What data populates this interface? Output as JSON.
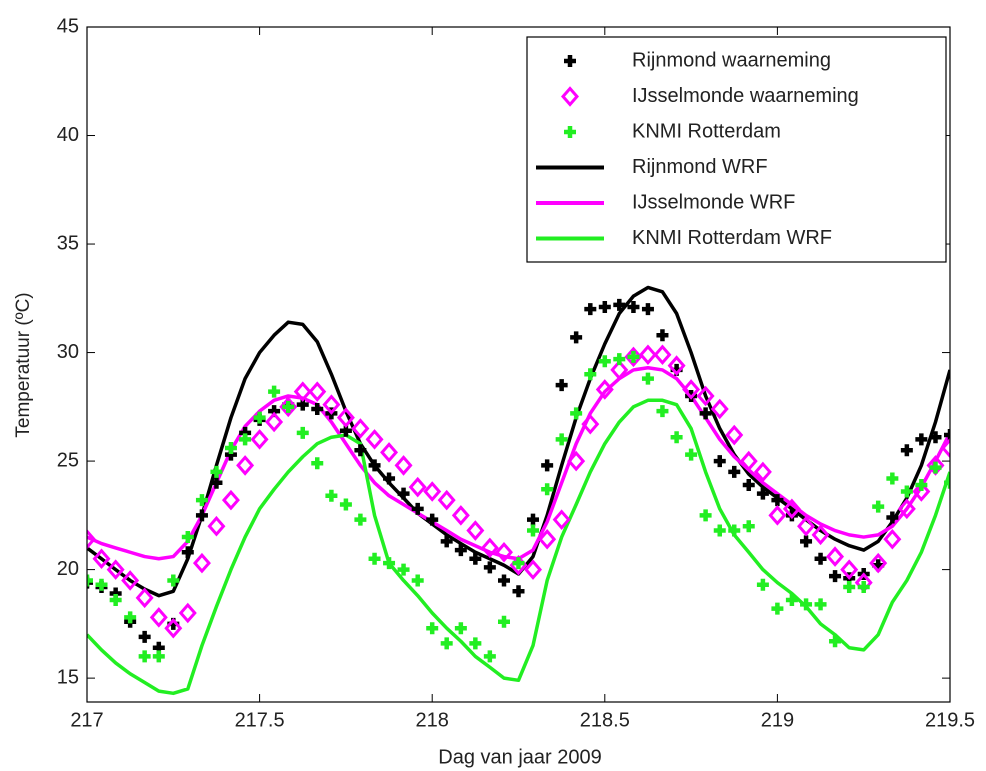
{
  "chart_data": {
    "type": "line",
    "xlabel": "Dag van jaar 2009",
    "ylabel": "Temperatuur (ºC)",
    "xlim": [
      217,
      219.5
    ],
    "ylim": [
      13.9,
      45
    ],
    "xticks": [
      217,
      217.5,
      218,
      218.5,
      219,
      219.5
    ],
    "yticks": [
      15,
      20,
      25,
      30,
      35,
      40,
      45
    ],
    "legend": "top-right",
    "x": [
      217,
      217.042,
      217.083,
      217.125,
      217.167,
      217.208,
      217.25,
      217.292,
      217.333,
      217.375,
      217.417,
      217.458,
      217.5,
      217.542,
      217.583,
      217.625,
      217.667,
      217.708,
      217.75,
      217.792,
      217.833,
      217.875,
      217.917,
      217.958,
      218,
      218.042,
      218.083,
      218.125,
      218.167,
      218.208,
      218.25,
      218.292,
      218.333,
      218.375,
      218.417,
      218.458,
      218.5,
      218.542,
      218.583,
      218.625,
      218.667,
      218.708,
      218.75,
      218.792,
      218.833,
      218.875,
      218.917,
      218.958,
      219,
      219.042,
      219.083,
      219.125,
      219.167,
      219.208,
      219.25,
      219.292,
      219.333,
      219.375,
      219.417,
      219.458,
      219.5
    ],
    "series": [
      {
        "name": "Rijnmond waarneming",
        "color": "#000000",
        "style": "plus",
        "values": [
          19.4,
          19.2,
          18.9,
          17.6,
          16.9,
          16.4,
          17.5,
          20.8,
          22.5,
          24.0,
          25.3,
          26.3,
          26.9,
          27.3,
          27.6,
          27.6,
          27.4,
          27.2,
          26.4,
          25.5,
          24.8,
          24.2,
          23.5,
          22.8,
          22.3,
          21.3,
          20.9,
          20.5,
          20.1,
          19.5,
          19.0,
          22.3,
          24.8,
          28.5,
          30.7,
          32.0,
          32.1,
          32.2,
          32.1,
          32.0,
          30.8,
          29.2,
          28.0,
          27.2,
          25.0,
          24.5,
          23.9,
          23.5,
          23.2,
          22.5,
          21.3,
          20.5,
          19.7,
          19.6,
          19.8,
          20.2,
          22.4,
          25.5,
          26.0,
          26.1,
          26.2
        ]
      },
      {
        "name": "IJsselmonde waarneming",
        "color": "#ff00ff",
        "style": "diamond",
        "values": [
          21.4,
          20.5,
          20.0,
          19.5,
          18.7,
          17.8,
          17.3,
          18.0,
          20.3,
          22.0,
          23.2,
          24.8,
          26.0,
          26.8,
          27.5,
          28.2,
          28.2,
          27.6,
          27.0,
          26.5,
          26.0,
          25.4,
          24.8,
          23.8,
          23.6,
          23.2,
          22.5,
          21.8,
          21.0,
          20.8,
          20.2,
          20.0,
          21.4,
          22.3,
          25.0,
          26.7,
          28.3,
          29.2,
          29.8,
          29.9,
          29.9,
          29.4,
          28.3,
          28.0,
          27.4,
          26.2,
          25.0,
          24.5,
          22.5,
          22.8,
          22.0,
          21.6,
          20.6,
          20.0,
          19.4,
          20.3,
          21.4,
          22.8,
          23.6,
          24.8,
          25.6
        ]
      },
      {
        "name": "KNMI Rotterdam",
        "color": "#22ee22",
        "style": "plus",
        "values": [
          19.5,
          19.3,
          18.6,
          17.8,
          16.0,
          16.0,
          19.5,
          21.5,
          23.2,
          24.5,
          25.6,
          26.0,
          27.0,
          28.2,
          27.5,
          26.3,
          24.9,
          23.4,
          23.0,
          22.3,
          20.5,
          20.3,
          20.0,
          19.5,
          17.3,
          16.6,
          17.3,
          16.6,
          16.0,
          17.6,
          20.3,
          21.8,
          23.7,
          26.0,
          27.2,
          29.0,
          29.6,
          29.7,
          29.8,
          28.8,
          27.3,
          26.1,
          25.3,
          22.5,
          21.8,
          21.8,
          22.0,
          19.3,
          18.2,
          18.6,
          18.4,
          18.4,
          16.7,
          19.2,
          19.2,
          22.9,
          24.2,
          23.6,
          23.9,
          24.7,
          24.0
        ]
      },
      {
        "name": "Rijnmond WRF",
        "color": "#000000",
        "style": "line",
        "values": [
          21.0,
          20.5,
          20.0,
          19.5,
          19.1,
          18.8,
          19.0,
          20.5,
          22.5,
          24.8,
          27.0,
          28.8,
          30.0,
          30.8,
          31.4,
          31.3,
          30.5,
          29.0,
          27.3,
          25.8,
          24.8,
          24.0,
          23.3,
          22.6,
          22.1,
          21.6,
          21.2,
          20.8,
          20.5,
          20.2,
          19.8,
          20.6,
          22.5,
          24.8,
          27.0,
          28.8,
          30.4,
          31.8,
          32.6,
          33.0,
          32.8,
          31.8,
          30.0,
          28.0,
          26.5,
          25.3,
          24.4,
          23.8,
          23.3,
          22.8,
          22.3,
          21.8,
          21.4,
          21.1,
          20.9,
          21.3,
          22.2,
          23.3,
          24.8,
          26.8,
          29.2
        ]
      },
      {
        "name": "IJsselmonde WRF",
        "color": "#ff00ff",
        "style": "line",
        "values": [
          21.5,
          21.2,
          21.0,
          20.8,
          20.6,
          20.5,
          20.6,
          21.3,
          22.5,
          24.0,
          25.5,
          26.6,
          27.3,
          27.8,
          28.0,
          27.9,
          27.6,
          26.8,
          25.8,
          24.8,
          24.0,
          23.4,
          23.0,
          22.6,
          22.2,
          21.8,
          21.4,
          21.1,
          20.8,
          20.6,
          20.5,
          20.9,
          22.2,
          24.0,
          25.8,
          27.2,
          28.2,
          28.8,
          29.2,
          29.3,
          29.2,
          28.8,
          28.0,
          27.0,
          26.0,
          25.2,
          24.6,
          24.0,
          23.5,
          23.0,
          22.5,
          22.1,
          21.8,
          21.6,
          21.5,
          21.6,
          22.0,
          22.8,
          23.8,
          25.0,
          26.3
        ]
      },
      {
        "name": "KNMI Rotterdam WRF",
        "color": "#22ee22",
        "style": "line",
        "values": [
          17.0,
          16.3,
          15.7,
          15.2,
          14.8,
          14.4,
          14.3,
          14.5,
          16.5,
          18.3,
          20.0,
          21.5,
          22.8,
          23.7,
          24.5,
          25.2,
          25.8,
          26.1,
          26.2,
          25.8,
          22.5,
          20.3,
          19.5,
          18.8,
          18.0,
          17.3,
          16.7,
          16.0,
          15.5,
          15.0,
          14.9,
          16.5,
          19.5,
          21.5,
          23.0,
          24.5,
          25.8,
          26.8,
          27.5,
          27.8,
          27.8,
          27.6,
          26.5,
          24.5,
          22.8,
          21.6,
          20.8,
          20.0,
          19.4,
          18.9,
          18.3,
          17.5,
          17.0,
          16.4,
          16.3,
          17.0,
          18.5,
          19.5,
          20.8,
          22.5,
          24.5
        ]
      }
    ]
  }
}
